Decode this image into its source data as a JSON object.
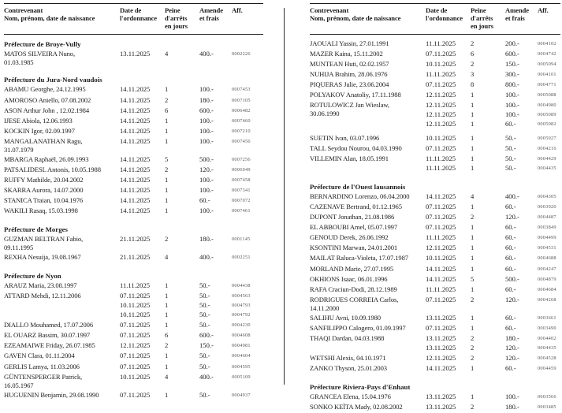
{
  "page": {
    "background_color": "#ffffff",
    "text_color": "#1c1c1c",
    "rule_color": "#1a1a1a",
    "case_number_color": "#575757"
  },
  "table_header": {
    "contrevenant": [
      "Contrevenant",
      "Nom, prénom, date de naissance"
    ],
    "date": [
      "Date de",
      "l'ordonnance"
    ],
    "peine": [
      "Peine",
      "d'arrêts",
      "en jours"
    ],
    "amende": [
      "Amende",
      "et frais"
    ],
    "aff": [
      "Aff."
    ]
  },
  "columns": [
    {
      "sections": [
        {
          "heading": "Préfecture de Broye-Vully",
          "rows": [
            {
              "name": [
                "MATOS SILVEIRA Nuno,",
                "01.03.1985"
              ],
              "entries": [
                {
                  "date": "13.11.2025",
                  "days": "4",
                  "fine": "400.-",
                  "aff": "0002226"
                }
              ]
            }
          ]
        },
        {
          "heading": "Préfecture du Jura-Nord vaudois",
          "rows": [
            {
              "name": [
                "ABAMU Georghe, 24.12.1995"
              ],
              "entries": [
                {
                  "date": "14.11.2025",
                  "days": "1",
                  "fine": "100.-",
                  "aff": "0007453"
                }
              ]
            },
            {
              "name": [
                "AMOROSO Aniello, 07.08.2002"
              ],
              "entries": [
                {
                  "date": "14.11.2025",
                  "days": "2",
                  "fine": "180.-",
                  "aff": "0007105"
                }
              ]
            },
            {
              "name": [
                "ASON Arthur John , 12.02.1984"
              ],
              "entries": [
                {
                  "date": "14.11.2025",
                  "days": "6",
                  "fine": "600.-",
                  "aff": "0006482"
                }
              ]
            },
            {
              "name": [
                "IJESE Abiola, 12.06.1993"
              ],
              "entries": [
                {
                  "date": "14.11.2025",
                  "days": "1",
                  "fine": "100.-",
                  "aff": "0007460"
                }
              ]
            },
            {
              "name": [
                "KOCKIN Igor, 02.09.1997"
              ],
              "entries": [
                {
                  "date": "14.11.2025",
                  "days": "1",
                  "fine": "100.-",
                  "aff": "0007210"
                }
              ]
            },
            {
              "name": [
                "MANGALANATHAN Ragu,",
                "31.07.1979"
              ],
              "entries": [
                {
                  "date": "14.11.2025",
                  "days": "1",
                  "fine": "100.-",
                  "aff": "0007456"
                }
              ]
            },
            {
              "name": [
                "MBARGA Raphaël, 26.09.1993"
              ],
              "entries": [
                {
                  "date": "14.11.2025",
                  "days": "5",
                  "fine": "500.-",
                  "aff": "0007256"
                }
              ]
            },
            {
              "name": [
                "PATSALIDESL Antonis, 10.05.1988"
              ],
              "entries": [
                {
                  "date": "14.11.2025",
                  "days": "2",
                  "fine": "120.-",
                  "aff": "0006949"
                }
              ]
            },
            {
              "name": [
                "RUFFY Mathilde, 20.04.2002"
              ],
              "entries": [
                {
                  "date": "14.11.2025",
                  "days": "1",
                  "fine": "100.-",
                  "aff": "0007458"
                }
              ]
            },
            {
              "name": [
                "SKARRA Aurora, 14.07.2000"
              ],
              "entries": [
                {
                  "date": "14.11.2025",
                  "days": "1",
                  "fine": "100.-",
                  "aff": "0007341"
                }
              ]
            },
            {
              "name": [
                "STANICA Traian, 10.04.1976"
              ],
              "entries": [
                {
                  "date": "14.11.2025",
                  "days": "1",
                  "fine": "60.-",
                  "aff": "0007072"
                }
              ]
            },
            {
              "name": [
                "WAKILI Rasaq, 15.03.1998"
              ],
              "entries": [
                {
                  "date": "14.11.2025",
                  "days": "1",
                  "fine": "100.-",
                  "aff": "0007461"
                }
              ]
            }
          ]
        },
        {
          "heading": "Préfecture de Morges",
          "rows": [
            {
              "name": [
                "GUZMAN BELTRAN Fabio,",
                "09.11.1995"
              ],
              "entries": [
                {
                  "date": "21.11.2025",
                  "days": "2",
                  "fine": "180.-",
                  "aff": "0001145"
                }
              ]
            },
            {
              "name": [
                "REXHA Nesuija, 19.08.1967"
              ],
              "entries": [
                {
                  "date": "21.11.2025",
                  "days": "4",
                  "fine": "400.-",
                  "aff": "0002251"
                }
              ]
            }
          ]
        },
        {
          "heading": "Préfecture de Nyon",
          "rows": [
            {
              "name": [
                "ARAUZ Maria, 23.08.1997"
              ],
              "entries": [
                {
                  "date": "11.11.2025",
                  "days": "1",
                  "fine": "50.-",
                  "aff": "0004438"
                }
              ]
            },
            {
              "name": [
                "ATTARD Mehdi, 12.11.2006"
              ],
              "entries": [
                {
                  "date": "07.11.2025",
                  "days": "1",
                  "fine": "50.-",
                  "aff": "0004563"
                },
                {
                  "date": "10.11.2025",
                  "days": "1",
                  "fine": "50.-",
                  "aff": "0004793"
                },
                {
                  "date": "10.11.2025",
                  "days": "1",
                  "fine": "50.-",
                  "aff": "0004792"
                }
              ]
            },
            {
              "name": [
                "DIALLO Mouhamed, 17.07.2006"
              ],
              "entries": [
                {
                  "date": "07.11.2025",
                  "days": "1",
                  "fine": "50.-",
                  "aff": "0004230"
                }
              ]
            },
            {
              "name": [
                "EL OUARZ Bassim, 30.07.1997"
              ],
              "entries": [
                {
                  "date": "07.11.2025",
                  "days": "6",
                  "fine": "600.-",
                  "aff": "0004608"
                }
              ]
            },
            {
              "name": [
                "EZEAMAIWE Friday, 26.07.1985"
              ],
              "entries": [
                {
                  "date": "12.11.2025",
                  "days": "2",
                  "fine": "150.-",
                  "aff": "0004981"
                }
              ]
            },
            {
              "name": [
                "GAVEN Clara, 01.11.2004"
              ],
              "entries": [
                {
                  "date": "07.11.2025",
                  "days": "1",
                  "fine": "50.-",
                  "aff": "0004604"
                }
              ]
            },
            {
              "name": [
                "GERLIS Lamya, 11.03.2006"
              ],
              "entries": [
                {
                  "date": "07.11.2025",
                  "days": "1",
                  "fine": "50.-",
                  "aff": "0004595"
                }
              ]
            },
            {
              "name": [
                "GÜNTENSPERGER Patrick,",
                "16.05.1967"
              ],
              "entries": [
                {
                  "date": "10.11.2025",
                  "days": "4",
                  "fine": "400.-",
                  "aff": "0005109"
                }
              ]
            },
            {
              "name": [
                "HUGUENIN Benjamin, 29.08.1990"
              ],
              "entries": [
                {
                  "date": "07.11.2025",
                  "days": "1",
                  "fine": "50.-",
                  "aff": "0004937"
                }
              ]
            }
          ]
        }
      ]
    },
    {
      "sections": [
        {
          "heading": "",
          "rows": [
            {
              "name": [
                "JAOUALI Yassin, 27.01.1991"
              ],
              "entries": [
                {
                  "date": "11.11.2025",
                  "days": "2",
                  "fine": "200.-",
                  "aff": "0004102"
                }
              ]
            },
            {
              "name": [
                "MAZER Kaina, 15.11.2002"
              ],
              "entries": [
                {
                  "date": "07.11.2025",
                  "days": "6",
                  "fine": "600.-",
                  "aff": "0004742"
                }
              ]
            },
            {
              "name": [
                "MUNTEAN Huti, 02.02.1957"
              ],
              "entries": [
                {
                  "date": "10.11.2025",
                  "days": "2",
                  "fine": "150.-",
                  "aff": "0005094"
                }
              ]
            },
            {
              "name": [
                "NUHIJA Brahim, 28.06.1976"
              ],
              "entries": [
                {
                  "date": "11.11.2025",
                  "days": "3",
                  "fine": "300.-",
                  "aff": "0004101"
                }
              ]
            },
            {
              "name": [
                "PIQUERAS Julie, 23.06.2004"
              ],
              "entries": [
                {
                  "date": "07.11.2025",
                  "days": "8",
                  "fine": "800.-",
                  "aff": "0004771"
                }
              ]
            },
            {
              "name": [
                "POLYAKOV Anatoliy, 17.11.1988"
              ],
              "entries": [
                {
                  "date": "12.11.2025",
                  "days": "1",
                  "fine": "100.-",
                  "aff": "0005088"
                }
              ]
            },
            {
              "name": [
                "ROTULOWICZ Jan Wieslaw,",
                "30.06.1990"
              ],
              "entries": [
                {
                  "date": "12.11.2025",
                  "days": "1",
                  "fine": "100.-",
                  "aff": "0004980"
                },
                {
                  "date": "12.11.2025",
                  "days": "1",
                  "fine": "100.-",
                  "aff": "0005089"
                },
                {
                  "date": "12.11.2025",
                  "days": "1",
                  "fine": "60.-",
                  "aff": "0005082"
                }
              ]
            },
            {
              "name": [
                "SUETIN Ivan, 03.07.1996"
              ],
              "gap_before": true,
              "entries": [
                {
                  "date": "10.11.2025",
                  "days": "1",
                  "fine": "50.-",
                  "aff": "0005027"
                }
              ]
            },
            {
              "name": [
                "TALL Seydou Nourou, 04.03.1990"
              ],
              "entries": [
                {
                  "date": "07.11.2025",
                  "days": "1",
                  "fine": "50.-",
                  "aff": "0004216"
                }
              ]
            },
            {
              "name": [
                "VILLEMIN Alan, 18.05.1991"
              ],
              "entries": [
                {
                  "date": "11.11.2025",
                  "days": "1",
                  "fine": "50.-",
                  "aff": "0004429"
                },
                {
                  "date": "11.11.2025",
                  "days": "1",
                  "fine": "50.-",
                  "aff": "0004435"
                }
              ]
            }
          ]
        },
        {
          "heading": "Préfecture de l'Ouest lausannois",
          "rows": [
            {
              "name": [
                "BERNARDINO Lorenzo, 06.04.2000"
              ],
              "entries": [
                {
                  "date": "14.11.2025",
                  "days": "4",
                  "fine": "400.-",
                  "aff": "0004305"
                }
              ]
            },
            {
              "name": [
                "CAZENAVE Bertrand, 01.12.1965"
              ],
              "entries": [
                {
                  "date": "07.11.2025",
                  "days": "1",
                  "fine": "60.-",
                  "aff": "0003920"
                }
              ]
            },
            {
              "name": [
                "DUPONT Jonathan, 21.08.1986"
              ],
              "entries": [
                {
                  "date": "07.11.2025",
                  "days": "2",
                  "fine": "120.-",
                  "aff": "0004487"
                }
              ]
            },
            {
              "name": [
                "EL ABBOUBI Amel, 05.07.1997"
              ],
              "entries": [
                {
                  "date": "07.11.2025",
                  "days": "1",
                  "fine": "60.-",
                  "aff": "0003849"
                }
              ]
            },
            {
              "name": [
                "GENOUD Derek, 26.06.1992"
              ],
              "entries": [
                {
                  "date": "11.11.2025",
                  "days": "1",
                  "fine": "60.-",
                  "aff": "0004499"
                }
              ]
            },
            {
              "name": [
                "KSONTINI Marwan, 24.01.2001"
              ],
              "entries": [
                {
                  "date": "12.11.2025",
                  "days": "1",
                  "fine": "60.-",
                  "aff": "0004531"
                }
              ]
            },
            {
              "name": [
                "MAILAT Raluca-Violeta, 17.07.1987"
              ],
              "entries": [
                {
                  "date": "10.11.2025",
                  "days": "1",
                  "fine": "60.-",
                  "aff": "0004688"
                }
              ]
            },
            {
              "name": [
                "MORLAND Marie, 27.07.1995"
              ],
              "entries": [
                {
                  "date": "14.11.2025",
                  "days": "1",
                  "fine": "60.-",
                  "aff": "0004247"
                }
              ]
            },
            {
              "name": [
                "OKHIONS Isaac, 06.01.1996"
              ],
              "entries": [
                {
                  "date": "14.11.2025",
                  "days": "5",
                  "fine": "500.-",
                  "aff": "0004879"
                }
              ]
            },
            {
              "name": [
                "RAFA Craciun-Dodi, 28.12.1989"
              ],
              "entries": [
                {
                  "date": "11.11.2025",
                  "days": "1",
                  "fine": "60.-",
                  "aff": "0004684"
                }
              ]
            },
            {
              "name": [
                "RODRIGUES CORREIA Carlos,",
                "14.11.2000"
              ],
              "entries": [
                {
                  "date": "07.11.2025",
                  "days": "2",
                  "fine": "120.-",
                  "aff": "0004268"
                }
              ]
            },
            {
              "name": [
                "SALIHU Avni, 10.09.1980"
              ],
              "entries": [
                {
                  "date": "13.11.2025",
                  "days": "1",
                  "fine": "60.-",
                  "aff": "0003661"
                }
              ]
            },
            {
              "name": [
                "SANFILIPPO Calogero, 01.09.1997"
              ],
              "entries": [
                {
                  "date": "07.11.2025",
                  "days": "1",
                  "fine": "60.-",
                  "aff": "0003490"
                }
              ]
            },
            {
              "name": [
                "THAQI Dardan, 04.03.1988"
              ],
              "entries": [
                {
                  "date": "13.11.2025",
                  "days": "2",
                  "fine": "180.-",
                  "aff": "0004402"
                },
                {
                  "date": "13.11.2025",
                  "days": "2",
                  "fine": "120.-",
                  "aff": "0004435"
                }
              ]
            },
            {
              "name": [
                "WETSHI Alexis, 04.10.1971"
              ],
              "entries": [
                {
                  "date": "12.11.2025",
                  "days": "2",
                  "fine": "120.-",
                  "aff": "0004528"
                }
              ]
            },
            {
              "name": [
                "ZANKO Thyson, 25.01.2003"
              ],
              "entries": [
                {
                  "date": "14.11.2025",
                  "days": "1",
                  "fine": "60.-",
                  "aff": "0004459"
                }
              ]
            }
          ]
        },
        {
          "heading": "Préfecture Riviera-Pays d'Enhaut",
          "rows": [
            {
              "name": [
                "GRANCEA Elena, 15.04.1976"
              ],
              "entries": [
                {
                  "date": "13.11.2025",
                  "days": "1",
                  "fine": "100.-",
                  "aff": "0003566"
                }
              ]
            },
            {
              "name": [
                "SONKO KEÏTA Mady, 02.08.2002"
              ],
              "entries": [
                {
                  "date": "13.11.2025",
                  "days": "2",
                  "fine": "180.-",
                  "aff": "0003485"
                }
              ]
            }
          ]
        }
      ]
    }
  ]
}
